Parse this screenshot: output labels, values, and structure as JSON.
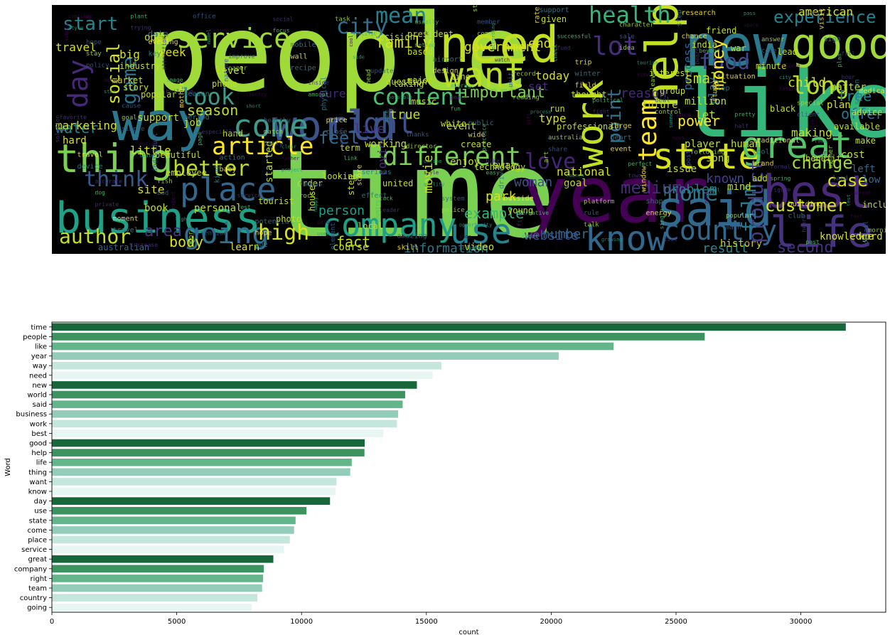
{
  "wordcloud": {
    "background": "#000000",
    "palette": [
      "#440154",
      "#46327e",
      "#365c8d",
      "#277f8e",
      "#1fa187",
      "#4ac16d",
      "#a0da39",
      "#fde725"
    ],
    "big_words": [
      {
        "text": "people",
        "color": "#a0da39"
      },
      {
        "text": "time",
        "color": "#7ad151"
      },
      {
        "text": "like",
        "color": "#35b779"
      },
      {
        "text": "year",
        "color": "#440154"
      },
      {
        "text": "way",
        "color": "#2a788e"
      },
      {
        "text": "need",
        "color": "#c2df23"
      },
      {
        "text": "new",
        "color": "#2a788e"
      },
      {
        "text": "business",
        "color": "#1fa187"
      },
      {
        "text": "world",
        "color": "#3b528b"
      },
      {
        "text": "said",
        "color": "#31688e"
      },
      {
        "text": "work",
        "color": "#c2df23"
      },
      {
        "text": "best",
        "color": "#482878"
      },
      {
        "text": "good",
        "color": "#a0da39"
      },
      {
        "text": "help",
        "color": "#c2df23"
      },
      {
        "text": "life",
        "color": "#46327e"
      },
      {
        "text": "thing",
        "color": "#7ad151"
      },
      {
        "text": "want",
        "color": "#bddf26"
      },
      {
        "text": "know",
        "color": "#31688e"
      },
      {
        "text": "day",
        "color": "#482878"
      },
      {
        "text": "use",
        "color": "#26828e"
      },
      {
        "text": "state",
        "color": "#d8e219"
      },
      {
        "text": "come",
        "color": "#3e9a8a"
      },
      {
        "text": "place",
        "color": "#31688e"
      },
      {
        "text": "service",
        "color": "#a0da39"
      },
      {
        "text": "great",
        "color": "#52c569"
      },
      {
        "text": "company",
        "color": "#1f9e89"
      },
      {
        "text": "right",
        "color": "#3b528b"
      },
      {
        "text": "team",
        "color": "#fde725"
      },
      {
        "text": "country",
        "color": "#31688e"
      },
      {
        "text": "going",
        "color": "#2e6e8e"
      },
      {
        "text": "different",
        "color": "#75d054"
      },
      {
        "text": "content",
        "color": "#4ac16d"
      },
      {
        "text": "health",
        "color": "#35b779"
      },
      {
        "text": "lot",
        "color": "#472d7b"
      },
      {
        "text": "article",
        "color": "#fde725"
      },
      {
        "text": "author",
        "color": "#c2df23"
      },
      {
        "text": "high",
        "color": "#d8e219"
      },
      {
        "text": "home",
        "color": "#2a788e"
      },
      {
        "text": "food",
        "color": "#3e4989"
      },
      {
        "text": "long",
        "color": "#b5de2b"
      },
      {
        "text": "city",
        "color": "#2c728e"
      },
      {
        "text": "mean",
        "color": "#26828e"
      },
      {
        "text": "product",
        "color": "#433e85"
      },
      {
        "text": "love",
        "color": "#482475"
      },
      {
        "text": "better",
        "color": "#bddf26"
      },
      {
        "text": "look",
        "color": "#3e9a8a"
      },
      {
        "text": "think",
        "color": "#38598c"
      },
      {
        "text": "social",
        "color": "#d8e219"
      },
      {
        "text": "game",
        "color": "#2c728e"
      },
      {
        "text": "start",
        "color": "#25848e"
      },
      {
        "text": "point",
        "color": "#2c728e"
      },
      {
        "text": "customer",
        "color": "#d8e219"
      },
      {
        "text": "change",
        "color": "#a0da39"
      },
      {
        "text": "experience",
        "color": "#26828e"
      },
      {
        "text": "important",
        "color": "#7ad151"
      },
      {
        "text": "feel",
        "color": "#31688e"
      },
      {
        "text": "family",
        "color": "#d8e219"
      },
      {
        "text": "water",
        "color": "#25858e"
      },
      {
        "text": "season",
        "color": "#bddf26"
      },
      {
        "text": "medium",
        "color": "#472d7b"
      },
      {
        "text": "money",
        "color": "#fde725"
      },
      {
        "text": "area",
        "color": "#453781"
      },
      {
        "text": "body",
        "color": "#d8e219"
      },
      {
        "text": "fact",
        "color": "#c2df23"
      },
      {
        "text": "number",
        "color": "#31688e"
      },
      {
        "text": "information",
        "color": "#2a788e"
      },
      {
        "text": "website",
        "color": "#3b528b"
      },
      {
        "text": "result",
        "color": "#25858e"
      },
      {
        "text": "second",
        "color": "#46327e"
      },
      {
        "text": "film",
        "color": "#2a788e"
      },
      {
        "text": "case",
        "color": "#d8e219"
      },
      {
        "text": "free",
        "color": "#25858e"
      },
      {
        "text": "child",
        "color": "#d8e219"
      },
      {
        "text": "offer",
        "color": "#2c728e"
      },
      {
        "text": "power",
        "color": "#fde725"
      },
      {
        "text": "small",
        "color": "#c2df23"
      },
      {
        "text": "play",
        "color": "#2c728e"
      },
      {
        "text": "problem",
        "color": "#2a788e"
      },
      {
        "text": "known",
        "color": "#3e4989"
      },
      {
        "text": "park",
        "color": "#d8e219"
      },
      {
        "text": "example",
        "color": "#35b779"
      },
      {
        "text": "woman",
        "color": "#3b528b"
      },
      {
        "text": "movie",
        "color": "#c2df23"
      },
      {
        "text": "person",
        "color": "#1f9e89"
      },
      {
        "text": "site",
        "color": "#d8e219"
      },
      {
        "text": "today",
        "color": "#d8e219"
      },
      {
        "text": "sure",
        "color": "#482878"
      },
      {
        "text": "true",
        "color": "#c2df23"
      },
      {
        "text": "live",
        "color": "#46327e"
      },
      {
        "text": "type",
        "color": "#d8e219"
      },
      {
        "text": "let",
        "color": "#c2df23"
      },
      {
        "text": "making",
        "color": "#c2df23"
      },
      {
        "text": "marketing",
        "color": "#d8e219"
      },
      {
        "text": "travel",
        "color": "#d8e219"
      },
      {
        "text": "week",
        "color": "#d8e219"
      },
      {
        "text": "big",
        "color": "#d8e219"
      },
      {
        "text": "job",
        "color": "#c2df23"
      },
      {
        "text": "little",
        "color": "#d8e219"
      },
      {
        "text": "american",
        "color": "#d8e219"
      },
      {
        "text": "government",
        "color": "#d8e219"
      },
      {
        "text": "end",
        "color": "#d8e219"
      },
      {
        "text": "reason",
        "color": "#482878"
      },
      {
        "text": "set",
        "color": "#482878"
      },
      {
        "text": "process",
        "color": "#31688e"
      },
      {
        "text": "matter",
        "color": "#c2df23"
      },
      {
        "text": "plan",
        "color": "#d8e219"
      },
      {
        "text": "course",
        "color": "#c2df23"
      },
      {
        "text": "learn",
        "color": "#d8e219"
      },
      {
        "text": "history",
        "color": "#c2df23"
      },
      {
        "text": "knowledge",
        "color": "#d8e219"
      },
      {
        "text": "word",
        "color": "#d8e219"
      },
      {
        "text": "australian",
        "color": "#31688e"
      },
      {
        "text": "video",
        "color": "#c2df23"
      },
      {
        "text": "support",
        "color": "#c2df23"
      },
      {
        "text": "level",
        "color": "#c2df23"
      },
      {
        "text": "data",
        "color": "#31688e"
      },
      {
        "text": "open",
        "color": "#c2df23"
      },
      {
        "text": "hard",
        "color": "#d8e219"
      },
      {
        "text": "covid",
        "color": "#46327e"
      },
      {
        "text": "national",
        "color": "#d8e219"
      },
      {
        "text": "away",
        "color": "#c2df23"
      },
      {
        "text": "working",
        "color": "#c2df23"
      },
      {
        "text": "started",
        "color": "#c2df23"
      },
      {
        "text": "music",
        "color": "#c2df23"
      },
      {
        "text": "future",
        "color": "#c2df23"
      },
      {
        "text": "million",
        "color": "#c2df23"
      },
      {
        "text": "india",
        "color": "#c2df23"
      },
      {
        "text": "war",
        "color": "#c2df23"
      },
      {
        "text": "minute",
        "color": "#c2df23"
      },
      {
        "text": "lead",
        "color": "#c2df23"
      },
      {
        "text": "player",
        "color": "#c2df23"
      },
      {
        "text": "human",
        "color": "#c2df23"
      },
      {
        "text": "mind",
        "color": "#c2df23"
      },
      {
        "text": "cost",
        "color": "#c2df23"
      },
      {
        "text": "left",
        "color": "#31688e"
      },
      {
        "text": "low",
        "color": "#31688e"
      },
      {
        "text": "benefit",
        "color": "#c2df23"
      },
      {
        "text": "song",
        "color": "#c2df23"
      },
      {
        "text": "issue",
        "color": "#c2df23"
      },
      {
        "text": "goal",
        "color": "#c2df23"
      },
      {
        "text": "book",
        "color": "#c2df23"
      },
      {
        "text": "personal",
        "color": "#c2df23"
      },
      {
        "text": "event",
        "color": "#c2df23"
      },
      {
        "text": "enjoy",
        "color": "#c2df23"
      },
      {
        "text": "house",
        "color": "#c2df23"
      },
      {
        "text": "order",
        "color": "#c2df23"
      },
      {
        "text": "phone",
        "color": "#c2df23"
      },
      {
        "text": "thought",
        "color": "#c2df23"
      },
      {
        "text": "group",
        "color": "#c2df23"
      },
      {
        "text": "black",
        "color": "#c2df23"
      },
      {
        "text": "advice",
        "color": "#c2df23"
      },
      {
        "text": "include",
        "color": "#c2df23"
      },
      {
        "text": "available",
        "color": "#c2df23"
      },
      {
        "text": "industry",
        "color": "#c2df23"
      },
      {
        "text": "market",
        "color": "#c2df23"
      },
      {
        "text": "popular",
        "color": "#c2df23"
      },
      {
        "text": "story",
        "color": "#c2df23"
      },
      {
        "text": "question",
        "color": "#c2df23"
      },
      {
        "text": "president",
        "color": "#c2df23"
      },
      {
        "text": "based",
        "color": "#c2df23"
      },
      {
        "text": "line",
        "color": "#c2df23"
      },
      {
        "text": "run",
        "color": "#c2df23"
      },
      {
        "text": "professional",
        "color": "#c2df23"
      },
      {
        "text": "create",
        "color": "#c2df23"
      },
      {
        "text": "united",
        "color": "#c2df23"
      },
      {
        "text": "looking",
        "color": "#c2df23"
      },
      {
        "text": "local",
        "color": "#c2df23"
      },
      {
        "text": "step",
        "color": "#c2df23"
      },
      {
        "text": "photo",
        "color": "#c2df23"
      },
      {
        "text": "term",
        "color": "#c2df23"
      },
      {
        "text": "taking",
        "color": "#c2df23"
      },
      {
        "text": "add",
        "color": "#c2df23"
      },
      {
        "text": "make",
        "color": "#c2df23"
      },
      {
        "text": "hand",
        "color": "#c2df23"
      },
      {
        "text": "beautiful",
        "color": "#c2df23"
      },
      {
        "text": "employee",
        "color": "#c2df23"
      },
      {
        "text": "tourist",
        "color": "#c2df23"
      },
      {
        "text": "interest",
        "color": "#c2df23"
      },
      {
        "text": "friend",
        "color": "#c2df23"
      },
      {
        "text": "decision",
        "color": "#c2df23"
      },
      {
        "text": "major",
        "color": "#c2df23"
      },
      {
        "text": "white",
        "color": "#c2df23"
      },
      {
        "text": "technology",
        "color": "#c2df23"
      },
      {
        "text": "young",
        "color": "#c2df23"
      },
      {
        "text": "given",
        "color": "#c2df23"
      }
    ],
    "filler_words": [
      "school",
      "building",
      "party",
      "effect",
      "account",
      "check",
      "control",
      "brand",
      "tour",
      "trying",
      "nature",
      "close",
      "quality",
      "sport",
      "idea",
      "study",
      "search",
      "private",
      "office",
      "recipe",
      "care",
      "easy",
      "talk",
      "chance",
      "family",
      "solution",
      "bad",
      "age",
      "side",
      "fun",
      "art",
      "energy",
      "space",
      "hour",
      "simple",
      "kind",
      "user",
      "method",
      "reading",
      "event",
      "note",
      "school",
      "policy",
      "period",
      "project",
      "country",
      "common",
      "field",
      "news",
      "figure",
      "detail",
      "key",
      "short",
      "link",
      "police",
      "rate",
      "view",
      "half",
      "land",
      "travel",
      "model",
      "amount",
      "director",
      "outside",
      "team",
      "board",
      "client",
      "device",
      "light",
      "focus",
      "head",
      "wide",
      "form",
      "list",
      "code",
      "season",
      "state",
      "rest",
      "task",
      "design",
      "gift",
      "town",
      "main",
      "sign",
      "star",
      "page",
      "rock",
      "skill",
      "watch",
      "fight",
      "post",
      "club",
      "style",
      "image",
      "match",
      "score",
      "shop",
      "fund",
      "deal",
      "tool",
      "test",
      "plant",
      "paper",
      "price",
      "style",
      "fire",
      "sale",
      "top",
      "road",
      "dog",
      "door",
      "wall",
      "cup",
      "bike",
      "rule",
      "step",
      "city",
      "car",
      "fish",
      "hope",
      "cool",
      "peace",
      "share",
      "shape",
      "pass",
      "plan",
      "goal",
      "baby",
      "guide",
      "risk",
      "unit",
      "heart",
      "fall",
      "past",
      "stay",
      "mother",
      "father",
      "leader",
      "member",
      "winter",
      "summer",
      "spring",
      "morning",
      "evening",
      "country",
      "region",
      "system",
      "support",
      "tourism",
      "pretty",
      "winner",
      "moment",
      "center",
      "inside",
      "thanks",
      "drive",
      "growing",
      "beyond",
      "special",
      "travel",
      "expert",
      "social",
      "update",
      "public",
      "launch",
      "single",
      "answer",
      "medical",
      "option",
      "service",
      "element",
      "airport",
      "process",
      "perfect",
      "popular",
      "visit",
      "actually",
      "especially",
      "famous",
      "amazing",
      "according",
      "political",
      "following",
      "building",
      "continue",
      "attraction",
      "healthy",
      "serious",
      "opportunity",
      "successful",
      "leave",
      "traditional",
      "current",
      "increase",
      "improve",
      "physical",
      "online",
      "creative",
      "character",
      "situation",
      "rich",
      "accurate",
      "attention",
      "mobile",
      "possible",
      "practice",
      "platform",
      "research",
      "believe",
      "favorite",
      "individual",
      "potential",
      "specific",
      "average",
      "australia",
      "window",
      "weight",
      "fall",
      "cause",
      "action",
      "happy",
      "usually",
      "record",
      "large",
      "largest",
      "heard",
      "hope",
      "season",
      "clear",
      "lack",
      "strong",
      "trip",
      "common",
      "formal"
    ]
  },
  "chart_data": {
    "type": "bar",
    "orientation": "horizontal",
    "ylabel": "Word",
    "xlabel": "count",
    "xlim": [
      0,
      33400
    ],
    "xticks": [
      0,
      5000,
      10000,
      15000,
      20000,
      25000,
      30000
    ],
    "xtick_labels": [
      "0",
      "5000",
      "10000",
      "15000",
      "20000",
      "25000",
      "30000"
    ],
    "palette": [
      "#17673a",
      "#3c9360",
      "#64b48c",
      "#93ccb8",
      "#c4e6dc",
      "#e7f6f2"
    ],
    "categories": [
      "time",
      "people",
      "like",
      "year",
      "way",
      "need",
      "new",
      "world",
      "said",
      "business",
      "work",
      "best",
      "good",
      "help",
      "life",
      "thing",
      "want",
      "know",
      "day",
      "use",
      "state",
      "come",
      "place",
      "service",
      "great",
      "company",
      "right",
      "team",
      "country",
      "going"
    ],
    "values": [
      31800,
      26150,
      22500,
      20300,
      15600,
      15250,
      14620,
      14150,
      14050,
      13870,
      13820,
      13280,
      12530,
      12520,
      12010,
      11950,
      11400,
      11360,
      11140,
      10200,
      9760,
      9700,
      9530,
      9300,
      8870,
      8490,
      8460,
      8420,
      8230,
      8000
    ]
  }
}
